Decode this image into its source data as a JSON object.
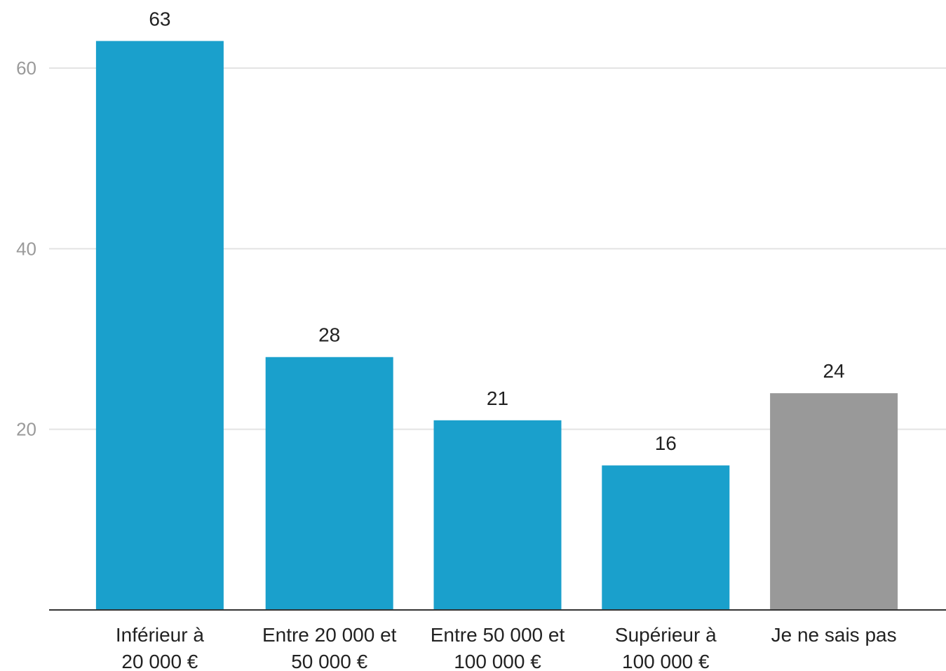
{
  "chart_data": {
    "type": "bar",
    "categories": [
      [
        "Inférieur à",
        "20 000 €"
      ],
      [
        "Entre 20 000 et",
        "50 000 €"
      ],
      [
        "Entre 50 000 et",
        "100 000 €"
      ],
      [
        "Supérieur à",
        "100 000 €"
      ],
      [
        "Je ne sais pas"
      ]
    ],
    "values": [
      63,
      28,
      21,
      16,
      24
    ],
    "bar_colors": [
      "#1aa0cc",
      "#1aa0cc",
      "#1aa0cc",
      "#1aa0cc",
      "#999999"
    ],
    "ylim": [
      0,
      65
    ],
    "yticks": [
      20,
      40,
      60
    ],
    "gridlines": true,
    "data_labels": true,
    "title": "",
    "xlabel": "",
    "ylabel": ""
  }
}
